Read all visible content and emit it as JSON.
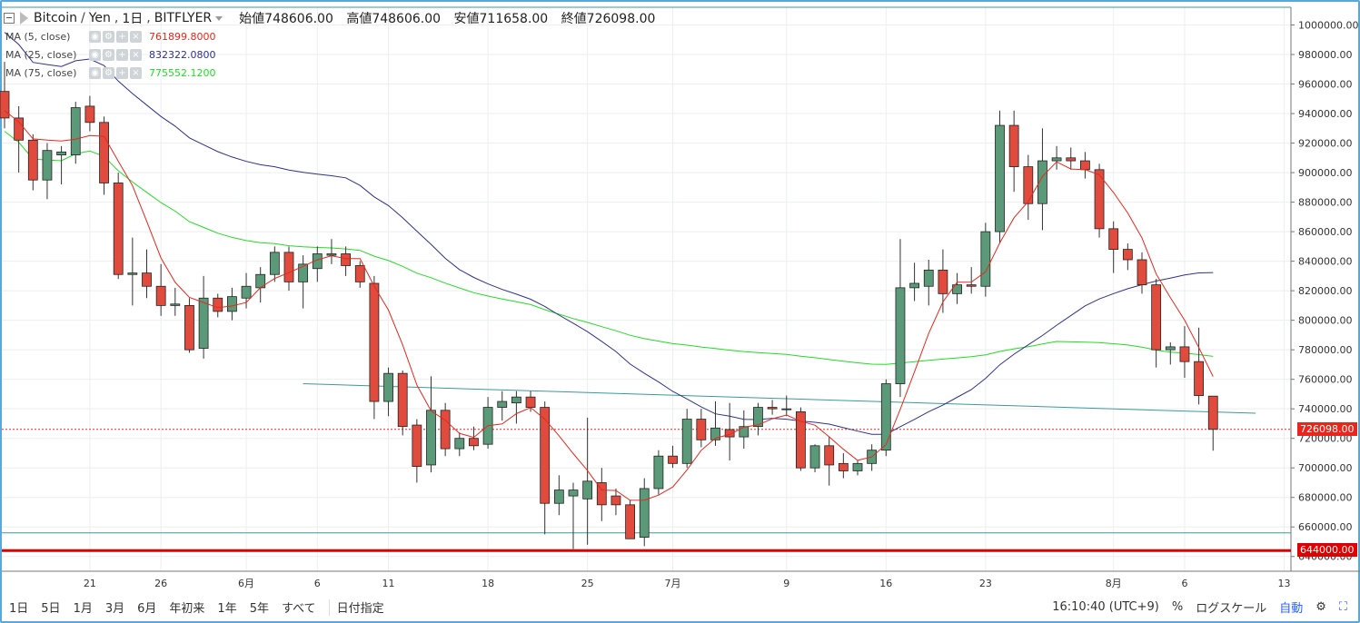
{
  "header": {
    "symbol": "Bitcoin",
    "currency": "Yen",
    "interval": "1日",
    "exchange": "BITFLYER",
    "open_label": "始値748606.00",
    "high_label": "高値748606.00",
    "low_label": "安値711658.00",
    "close_label": "終値726098.00"
  },
  "indicators": [
    {
      "label": "MA (5, close)",
      "value": "761899.8000",
      "color": "#e8271c"
    },
    {
      "label": "MA (25, close)",
      "value": "832322.0800",
      "color": "#2e3192"
    },
    {
      "label": "MA (75, close)",
      "value": "775552.1200",
      "color": "#22dd22"
    }
  ],
  "price_tags": [
    {
      "value": "726098.00",
      "color": "#e8271c"
    },
    {
      "value": "644000.00",
      "color": "#e00000"
    }
  ],
  "toolbar": {
    "ranges": [
      "1日",
      "5日",
      "1月",
      "3月",
      "6月",
      "年初来",
      "1年",
      "5年",
      "すべて"
    ],
    "date_select": "日付指定",
    "clock": "16:10:40 (UTC+9)",
    "percent": "%",
    "log_scale": "ログスケール",
    "auto": "自動"
  },
  "colors": {
    "up": "#5b9a78",
    "down": "#e14b3d",
    "frame": "#5aa8db",
    "grid": "#eceef0"
  },
  "chart_data": {
    "type": "candlestick",
    "y_ticks": [
      "1000000.00",
      "980000.00",
      "960000.00",
      "940000.00",
      "920000.00",
      "900000.00",
      "880000.00",
      "860000.00",
      "840000.00",
      "820000.00",
      "800000.00",
      "780000.00",
      "760000.00",
      "740000.00",
      "720000.00",
      "700000.00",
      "680000.00",
      "660000.00",
      "640000.00"
    ],
    "ylim": [
      630000,
      1012000
    ],
    "x_ticks": [
      {
        "label": "21",
        "idx": 6
      },
      {
        "label": "26",
        "idx": 11
      },
      {
        "label": "6月",
        "idx": 17
      },
      {
        "label": "6",
        "idx": 22
      },
      {
        "label": "11",
        "idx": 27
      },
      {
        "label": "18",
        "idx": 34
      },
      {
        "label": "25",
        "idx": 41
      },
      {
        "label": "7月",
        "idx": 47
      },
      {
        "label": "9",
        "idx": 55
      },
      {
        "label": "16",
        "idx": 62
      },
      {
        "label": "23",
        "idx": 69
      },
      {
        "label": "8月",
        "idx": 78
      },
      {
        "label": "6",
        "idx": 83
      },
      {
        "label": "13",
        "idx": 90
      }
    ],
    "candles": [
      {
        "o": 955000,
        "h": 975000,
        "l": 930000,
        "c": 937000
      },
      {
        "o": 937000,
        "h": 945000,
        "l": 900000,
        "c": 922000
      },
      {
        "o": 922000,
        "h": 926000,
        "l": 888000,
        "c": 895000
      },
      {
        "o": 895000,
        "h": 920000,
        "l": 882000,
        "c": 915000
      },
      {
        "o": 912000,
        "h": 918000,
        "l": 892000,
        "c": 914000
      },
      {
        "o": 912000,
        "h": 948000,
        "l": 906000,
        "c": 944000
      },
      {
        "o": 945000,
        "h": 952000,
        "l": 928000,
        "c": 934000
      },
      {
        "o": 934000,
        "h": 938000,
        "l": 885000,
        "c": 893000
      },
      {
        "o": 893000,
        "h": 900000,
        "l": 828000,
        "c": 831000
      },
      {
        "o": 831000,
        "h": 856000,
        "l": 810000,
        "c": 832000
      },
      {
        "o": 832000,
        "h": 848000,
        "l": 815000,
        "c": 823000
      },
      {
        "o": 823000,
        "h": 838000,
        "l": 803000,
        "c": 810000
      },
      {
        "o": 810000,
        "h": 822000,
        "l": 803000,
        "c": 811000
      },
      {
        "o": 810000,
        "h": 815000,
        "l": 778000,
        "c": 780000
      },
      {
        "o": 781000,
        "h": 830000,
        "l": 774000,
        "c": 815000
      },
      {
        "o": 815000,
        "h": 818000,
        "l": 802000,
        "c": 806000
      },
      {
        "o": 806000,
        "h": 822000,
        "l": 800000,
        "c": 816000
      },
      {
        "o": 815000,
        "h": 832000,
        "l": 808000,
        "c": 823000
      },
      {
        "o": 822000,
        "h": 836000,
        "l": 812000,
        "c": 831000
      },
      {
        "o": 831000,
        "h": 850000,
        "l": 826000,
        "c": 846000
      },
      {
        "o": 846000,
        "h": 850000,
        "l": 820000,
        "c": 826000
      },
      {
        "o": 826000,
        "h": 844000,
        "l": 808000,
        "c": 838000
      },
      {
        "o": 835000,
        "h": 850000,
        "l": 826000,
        "c": 845000
      },
      {
        "o": 844000,
        "h": 855000,
        "l": 838000,
        "c": 845000
      },
      {
        "o": 845000,
        "h": 850000,
        "l": 830000,
        "c": 837000
      },
      {
        "o": 837000,
        "h": 840000,
        "l": 822000,
        "c": 826000
      },
      {
        "o": 825000,
        "h": 830000,
        "l": 733000,
        "c": 745000
      },
      {
        "o": 745000,
        "h": 768000,
        "l": 735000,
        "c": 764000
      },
      {
        "o": 764000,
        "h": 766000,
        "l": 722000,
        "c": 728000
      },
      {
        "o": 729000,
        "h": 733000,
        "l": 690000,
        "c": 701000
      },
      {
        "o": 702000,
        "h": 762000,
        "l": 697000,
        "c": 739000
      },
      {
        "o": 739000,
        "h": 744000,
        "l": 708000,
        "c": 713000
      },
      {
        "o": 713000,
        "h": 724000,
        "l": 708000,
        "c": 720000
      },
      {
        "o": 720000,
        "h": 728000,
        "l": 712000,
        "c": 715000
      },
      {
        "o": 716000,
        "h": 748000,
        "l": 713000,
        "c": 741000
      },
      {
        "o": 741000,
        "h": 752000,
        "l": 732000,
        "c": 745000
      },
      {
        "o": 744000,
        "h": 752000,
        "l": 730000,
        "c": 748000
      },
      {
        "o": 748000,
        "h": 752000,
        "l": 738000,
        "c": 741000
      },
      {
        "o": 741000,
        "h": 745000,
        "l": 655000,
        "c": 676000
      },
      {
        "o": 676000,
        "h": 695000,
        "l": 668000,
        "c": 685000
      },
      {
        "o": 681000,
        "h": 690000,
        "l": 645000,
        "c": 685000
      },
      {
        "o": 679000,
        "h": 734000,
        "l": 648000,
        "c": 691000
      },
      {
        "o": 690000,
        "h": 700000,
        "l": 664000,
        "c": 675000
      },
      {
        "o": 681000,
        "h": 686000,
        "l": 668000,
        "c": 675000
      },
      {
        "o": 675000,
        "h": 678000,
        "l": 652000,
        "c": 652000
      },
      {
        "o": 653000,
        "h": 693000,
        "l": 647000,
        "c": 686000
      },
      {
        "o": 686000,
        "h": 712000,
        "l": 682000,
        "c": 708000
      },
      {
        "o": 708000,
        "h": 715000,
        "l": 700000,
        "c": 703000
      },
      {
        "o": 703000,
        "h": 740000,
        "l": 700000,
        "c": 733000
      },
      {
        "o": 733000,
        "h": 740000,
        "l": 714000,
        "c": 719000
      },
      {
        "o": 719000,
        "h": 745000,
        "l": 715000,
        "c": 727000
      },
      {
        "o": 726000,
        "h": 744000,
        "l": 705000,
        "c": 721000
      },
      {
        "o": 721000,
        "h": 739000,
        "l": 713000,
        "c": 728000
      },
      {
        "o": 728000,
        "h": 744000,
        "l": 722000,
        "c": 741000
      },
      {
        "o": 741000,
        "h": 746000,
        "l": 736000,
        "c": 740000
      },
      {
        "o": 740000,
        "h": 749000,
        "l": 735000,
        "c": 740000
      },
      {
        "o": 738000,
        "h": 741000,
        "l": 698000,
        "c": 700000
      },
      {
        "o": 700000,
        "h": 716000,
        "l": 697000,
        "c": 715000
      },
      {
        "o": 715000,
        "h": 721000,
        "l": 688000,
        "c": 702000
      },
      {
        "o": 703000,
        "h": 710000,
        "l": 693000,
        "c": 698000
      },
      {
        "o": 698000,
        "h": 705000,
        "l": 695000,
        "c": 703000
      },
      {
        "o": 703000,
        "h": 716000,
        "l": 698000,
        "c": 712000
      },
      {
        "o": 712000,
        "h": 760000,
        "l": 708000,
        "c": 757000
      },
      {
        "o": 757000,
        "h": 855000,
        "l": 748000,
        "c": 822000
      },
      {
        "o": 822000,
        "h": 839000,
        "l": 813000,
        "c": 825000
      },
      {
        "o": 823000,
        "h": 841000,
        "l": 810000,
        "c": 834000
      },
      {
        "o": 834000,
        "h": 848000,
        "l": 805000,
        "c": 818000
      },
      {
        "o": 818000,
        "h": 832000,
        "l": 811000,
        "c": 824000
      },
      {
        "o": 824000,
        "h": 836000,
        "l": 818000,
        "c": 823000
      },
      {
        "o": 823000,
        "h": 866000,
        "l": 816000,
        "c": 860000
      },
      {
        "o": 860000,
        "h": 942000,
        "l": 852000,
        "c": 932000
      },
      {
        "o": 932000,
        "h": 942000,
        "l": 887000,
        "c": 904000
      },
      {
        "o": 904000,
        "h": 912000,
        "l": 868000,
        "c": 879000
      },
      {
        "o": 879000,
        "h": 930000,
        "l": 861000,
        "c": 908000
      },
      {
        "o": 908000,
        "h": 918000,
        "l": 902000,
        "c": 910000
      },
      {
        "o": 910000,
        "h": 917000,
        "l": 902000,
        "c": 908000
      },
      {
        "o": 908000,
        "h": 914000,
        "l": 896000,
        "c": 902000
      },
      {
        "o": 902000,
        "h": 906000,
        "l": 856000,
        "c": 862000
      },
      {
        "o": 862000,
        "h": 867000,
        "l": 832000,
        "c": 848000
      },
      {
        "o": 848000,
        "h": 852000,
        "l": 834000,
        "c": 841000
      },
      {
        "o": 841000,
        "h": 846000,
        "l": 818000,
        "c": 824000
      },
      {
        "o": 824000,
        "h": 828000,
        "l": 768000,
        "c": 780000
      },
      {
        "o": 780000,
        "h": 785000,
        "l": 770000,
        "c": 782000
      },
      {
        "o": 782000,
        "h": 796000,
        "l": 761000,
        "c": 772000
      },
      {
        "o": 772000,
        "h": 795000,
        "l": 743000,
        "c": 749000
      },
      {
        "o": 748606,
        "h": 748606,
        "l": 711658,
        "c": 726098
      }
    ],
    "ma5_end": 761899.8,
    "ma25_end": 832322.08,
    "ma75_end": 775552.12,
    "horizontal_lines": [
      {
        "price": 644000,
        "color": "#e00000"
      },
      {
        "price": 656000,
        "color": "#3a9a9a"
      },
      {
        "price": 726098,
        "color": "#e8271c",
        "style": "dotted"
      }
    ],
    "trend_line": {
      "from": {
        "idx": 21,
        "price": 757000
      },
      "to": {
        "idx": 88,
        "price": 737000
      },
      "color": "#3a9a9a"
    }
  }
}
